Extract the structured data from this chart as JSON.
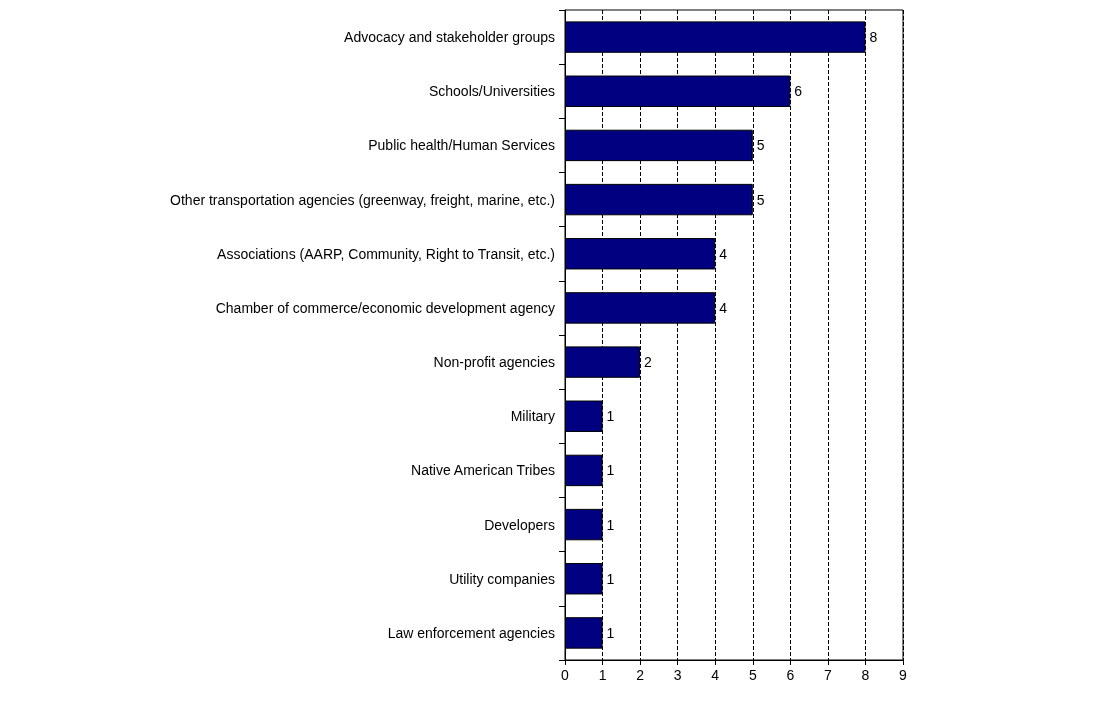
{
  "chart_data": {
    "type": "bar",
    "orientation": "horizontal",
    "categories": [
      "Advocacy and stakeholder groups",
      "Schools/Universities",
      "Public health/Human Services",
      "Other transportation agencies (greenway, freight, marine, etc.)",
      "Associations (AARP, Community, Right to Transit, etc.)",
      "Chamber of commerce/economic development agency",
      "Non-profit agencies",
      "Military",
      "Native American Tribes",
      "Developers",
      "Utility companies",
      "Law enforcement agencies"
    ],
    "values": [
      8,
      6,
      5,
      5,
      4,
      4,
      2,
      1,
      1,
      1,
      1,
      1
    ],
    "color": "#000080",
    "xlim": [
      0,
      9
    ],
    "xticks": [
      0,
      1,
      2,
      3,
      4,
      5,
      6,
      7,
      8,
      9
    ],
    "grid": "x",
    "data_labels": true
  }
}
